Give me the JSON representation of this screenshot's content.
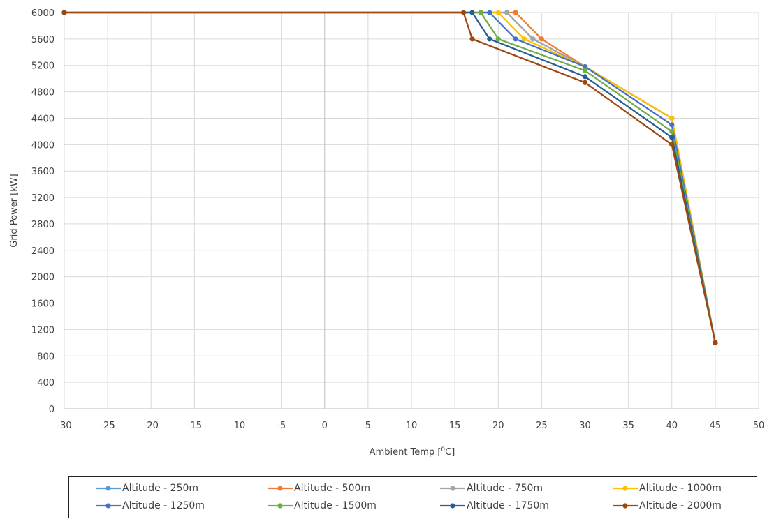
{
  "chart_data": {
    "type": "line",
    "xlabel": "Ambient Temp [",
    "xlabel_unit_sup": "0",
    "xlabel_unit_tail": "C]",
    "ylabel": "Grid Power [kW]",
    "xlim": [
      -30,
      50
    ],
    "ylim": [
      0,
      6000
    ],
    "x_ticks": [
      "-30",
      "-25",
      "-20",
      "-15",
      "-10",
      "-5",
      "0",
      "5",
      "10",
      "15",
      "20",
      "25",
      "30",
      "35",
      "40",
      "45",
      "50"
    ],
    "y_ticks": [
      "0",
      "400",
      "800",
      "1200",
      "1600",
      "2000",
      "2400",
      "2800",
      "3200",
      "3600",
      "4000",
      "4400",
      "4800",
      "5200",
      "5600",
      "6000"
    ],
    "grid": true,
    "legend_position": "bottom",
    "series": [
      {
        "name": "Altitude - 250m",
        "color": "#5B9BD5",
        "points": [
          [
            -30,
            6000
          ],
          [
            21,
            6000
          ],
          [
            24,
            5600
          ],
          [
            30,
            5180
          ],
          [
            40,
            4400
          ],
          [
            45,
            1000
          ]
        ]
      },
      {
        "name": "Altitude - 500m",
        "color": "#ED7D31",
        "points": [
          [
            -30,
            6000
          ],
          [
            22,
            6000
          ],
          [
            25,
            5600
          ],
          [
            30,
            5180
          ],
          [
            40,
            4400
          ],
          [
            45,
            1000
          ]
        ]
      },
      {
        "name": "Altitude - 750m",
        "color": "#A5A5A5",
        "points": [
          [
            -30,
            6000
          ],
          [
            21,
            6000
          ],
          [
            24,
            5600
          ],
          [
            30,
            5180
          ],
          [
            40,
            4400
          ],
          [
            45,
            1000
          ]
        ]
      },
      {
        "name": "Altitude - 1000m",
        "color": "#FFC000",
        "points": [
          [
            -30,
            6000
          ],
          [
            20,
            6000
          ],
          [
            23,
            5600
          ],
          [
            30,
            5180
          ],
          [
            40,
            4400
          ],
          [
            45,
            1000
          ]
        ]
      },
      {
        "name": "Altitude - 1250m",
        "color": "#4472C4",
        "points": [
          [
            -30,
            6000
          ],
          [
            19,
            6000
          ],
          [
            22,
            5600
          ],
          [
            30,
            5180
          ],
          [
            40,
            4300
          ],
          [
            45,
            1000
          ]
        ]
      },
      {
        "name": "Altitude - 1500m",
        "color": "#70AD47",
        "points": [
          [
            -30,
            6000
          ],
          [
            18,
            6000
          ],
          [
            20,
            5600
          ],
          [
            30,
            5120
          ],
          [
            40,
            4200
          ],
          [
            45,
            1000
          ]
        ]
      },
      {
        "name": "Altitude - 1750m",
        "color": "#255E91",
        "points": [
          [
            -30,
            6000
          ],
          [
            17,
            6000
          ],
          [
            19,
            5600
          ],
          [
            30,
            5030
          ],
          [
            40,
            4110
          ],
          [
            45,
            1000
          ]
        ]
      },
      {
        "name": "Altitude - 2000m",
        "color": "#9E480E",
        "points": [
          [
            -30,
            6000
          ],
          [
            16,
            6000
          ],
          [
            17,
            5600
          ],
          [
            30,
            4940
          ],
          [
            40,
            4000
          ],
          [
            45,
            1000
          ]
        ]
      }
    ]
  }
}
